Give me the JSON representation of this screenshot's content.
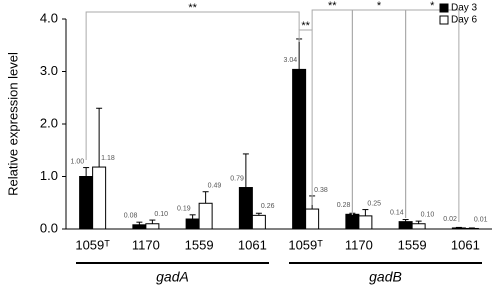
{
  "chart_data": {
    "type": "bar",
    "y_label": "Relative expression level",
    "categories": [
      "1059ᵀ",
      "1170",
      "1559",
      "1061",
      "1059ᵀ",
      "1170",
      "1559",
      "1061"
    ],
    "groups": [
      "gadA",
      "gadB"
    ],
    "series": [
      {
        "name": "Day 3",
        "color": "#000000",
        "values": [
          1.0,
          0.08,
          0.19,
          0.79,
          3.04,
          0.28,
          0.14,
          0.02
        ],
        "errors": [
          0.17,
          0.05,
          0.08,
          0.64,
          0.58,
          0.02,
          0.04,
          0.01
        ],
        "value_labels": [
          "1.00",
          "0.08",
          "0.19",
          "0.79",
          "3.04",
          "0.28",
          "0.14",
          "0.02"
        ]
      },
      {
        "name": "Day 6",
        "color": "#ffffff",
        "values": [
          1.18,
          0.1,
          0.49,
          0.26,
          0.38,
          0.25,
          0.1,
          0.01
        ],
        "errors": [
          1.12,
          0.07,
          0.22,
          0.04,
          0.25,
          0.12,
          0.05,
          0.01
        ],
        "value_labels": [
          "1.18",
          "0.10",
          "0.49",
          "0.26",
          "0.38",
          "0.25",
          "0.10",
          "0.01"
        ]
      }
    ],
    "ylim": [
      0,
      4
    ],
    "yticks": [
      {
        "value": 0,
        "label": "0.0"
      },
      {
        "value": 1,
        "label": "1.0"
      },
      {
        "value": 2,
        "label": "2.0"
      },
      {
        "value": 3,
        "label": "3.0"
      },
      {
        "value": 4,
        "label": "4.0"
      }
    ],
    "annotations": [
      "**",
      "**",
      "**",
      "*",
      "*"
    ],
    "legend": "top-right"
  }
}
